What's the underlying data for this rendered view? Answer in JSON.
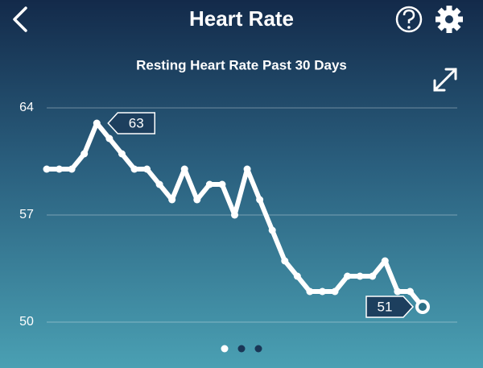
{
  "header": {
    "title": "Heart Rate"
  },
  "chart_data": {
    "type": "line",
    "subtitle": "Resting Heart Rate Past 30 Days",
    "values": [
      60,
      60,
      60,
      61,
      63,
      62,
      61,
      60,
      60,
      59,
      58,
      60,
      58,
      59,
      59,
      57,
      60,
      58,
      56,
      54,
      53,
      52,
      52,
      52,
      53,
      53,
      53,
      54,
      52,
      52,
      51
    ],
    "color": "#ffffff",
    "ylim": [
      50,
      64
    ],
    "yticks": [
      50,
      57,
      64
    ],
    "grid": true
  }
}
